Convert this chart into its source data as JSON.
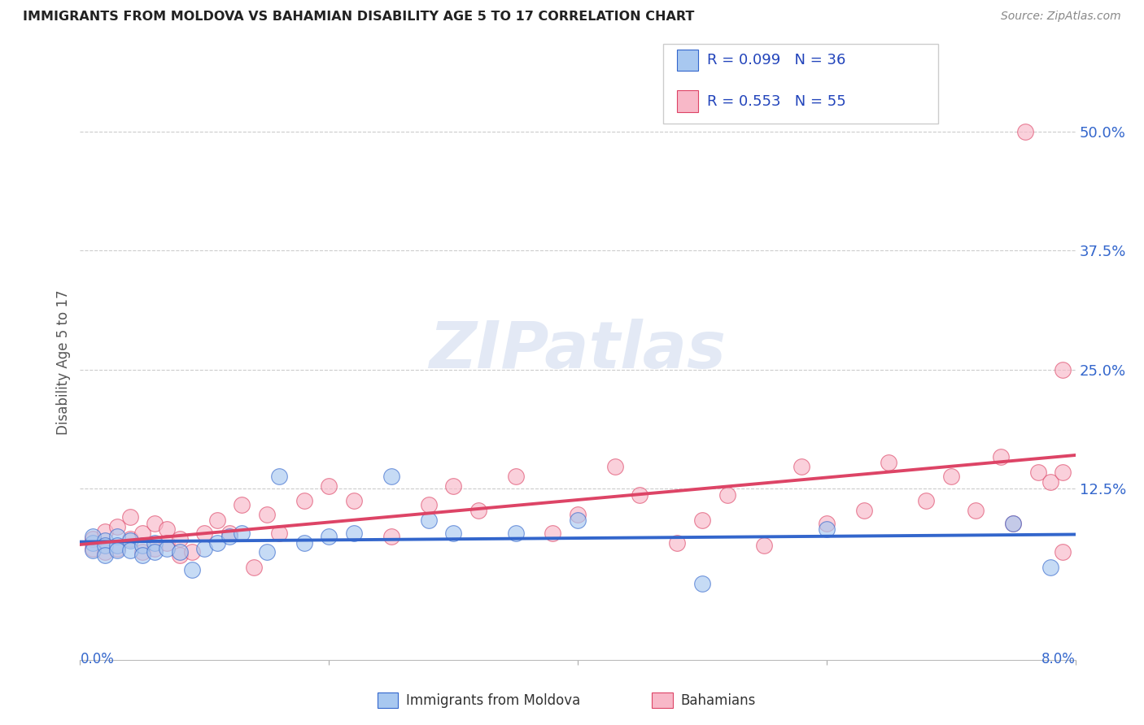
{
  "title": "IMMIGRANTS FROM MOLDOVA VS BAHAMIAN DISABILITY AGE 5 TO 17 CORRELATION CHART",
  "source": "Source: ZipAtlas.com",
  "ylabel": "Disability Age 5 to 17",
  "ytick_labels": [
    "50.0%",
    "37.5%",
    "25.0%",
    "12.5%"
  ],
  "ytick_vals": [
    0.5,
    0.375,
    0.25,
    0.125
  ],
  "xlim": [
    0.0,
    0.08
  ],
  "ylim": [
    -0.055,
    0.57
  ],
  "legend_bottom_label1": "Immigrants from Moldova",
  "legend_bottom_label2": "Bahamians",
  "blue_fill": "#a8c8f0",
  "pink_fill": "#f8b8c8",
  "blue_line_color": "#3366cc",
  "pink_line_color": "#dd4466",
  "watermark_text": "ZIPatlas",
  "moldova_x": [
    0.001,
    0.001,
    0.001,
    0.002,
    0.002,
    0.002,
    0.003,
    0.003,
    0.003,
    0.004,
    0.004,
    0.005,
    0.005,
    0.006,
    0.006,
    0.007,
    0.008,
    0.009,
    0.01,
    0.011,
    0.012,
    0.013,
    0.015,
    0.016,
    0.018,
    0.02,
    0.022,
    0.025,
    0.028,
    0.03,
    0.035,
    0.04,
    0.05,
    0.06,
    0.075,
    0.078
  ],
  "moldova_y": [
    0.068,
    0.075,
    0.06,
    0.07,
    0.065,
    0.055,
    0.075,
    0.065,
    0.06,
    0.07,
    0.06,
    0.065,
    0.055,
    0.068,
    0.058,
    0.062,
    0.058,
    0.04,
    0.062,
    0.068,
    0.075,
    0.078,
    0.058,
    0.138,
    0.068,
    0.075,
    0.078,
    0.138,
    0.092,
    0.078,
    0.078,
    0.092,
    0.025,
    0.082,
    0.088,
    0.042
  ],
  "bahamas_x": [
    0.001,
    0.001,
    0.002,
    0.002,
    0.003,
    0.003,
    0.004,
    0.004,
    0.005,
    0.005,
    0.006,
    0.006,
    0.007,
    0.007,
    0.008,
    0.008,
    0.009,
    0.01,
    0.011,
    0.012,
    0.013,
    0.014,
    0.015,
    0.016,
    0.018,
    0.02,
    0.022,
    0.025,
    0.028,
    0.03,
    0.032,
    0.035,
    0.038,
    0.04,
    0.043,
    0.045,
    0.048,
    0.05,
    0.052,
    0.055,
    0.058,
    0.06,
    0.063,
    0.065,
    0.068,
    0.07,
    0.072,
    0.074,
    0.075,
    0.076,
    0.077,
    0.078,
    0.079,
    0.079,
    0.079
  ],
  "bahamas_y": [
    0.062,
    0.072,
    0.058,
    0.08,
    0.062,
    0.085,
    0.072,
    0.095,
    0.058,
    0.078,
    0.062,
    0.088,
    0.082,
    0.068,
    0.072,
    0.055,
    0.058,
    0.078,
    0.092,
    0.078,
    0.108,
    0.042,
    0.098,
    0.078,
    0.112,
    0.128,
    0.112,
    0.075,
    0.108,
    0.128,
    0.102,
    0.138,
    0.078,
    0.098,
    0.148,
    0.118,
    0.068,
    0.092,
    0.118,
    0.065,
    0.148,
    0.088,
    0.102,
    0.152,
    0.112,
    0.138,
    0.102,
    0.158,
    0.088,
    0.5,
    0.142,
    0.132,
    0.058,
    0.142,
    0.25
  ]
}
